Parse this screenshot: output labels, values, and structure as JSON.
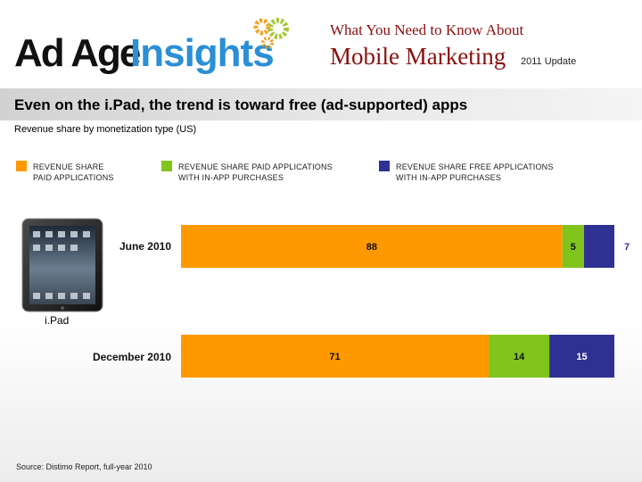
{
  "header": {
    "logo_part1": "Ad Age",
    "logo_part2": "Insights",
    "small_title": "What You Need to Know About",
    "big_title": "Mobile Marketing",
    "update": "2011 Update"
  },
  "colors": {
    "paid": "#FF9900",
    "inapp_paid": "#80C41C",
    "inapp_free": "#2E3192",
    "logo_blue": "#2b8fd6"
  },
  "chart_data": {
    "type": "bar",
    "orientation": "horizontal",
    "stacked": true,
    "title": "Even on the i.Pad, the trend is toward free (ad-supported) apps",
    "subtitle": "Revenue share by monetization type (US)",
    "categories": [
      "June 2010",
      "December 2010"
    ],
    "series": [
      {
        "name": "REVENUE SHARE\nPAID APPLICATIONS",
        "values": [
          88,
          71
        ],
        "color": "#FF9900"
      },
      {
        "name": "REVENUE SHARE PAID APPLICATIONS\nWITH IN-APP PURCHASES",
        "values": [
          5,
          14
        ],
        "color": "#80C41C"
      },
      {
        "name": "REVENUE SHARE FREE APPLICATIONS\nWITH IN-APP PURCHASES",
        "values": [
          7,
          15
        ],
        "color": "#2E3192"
      }
    ],
    "xlim": [
      0,
      100
    ],
    "legend_position": "top",
    "image_label": "i.Pad",
    "source": "Source: Distimo Report, full-year 2010"
  }
}
